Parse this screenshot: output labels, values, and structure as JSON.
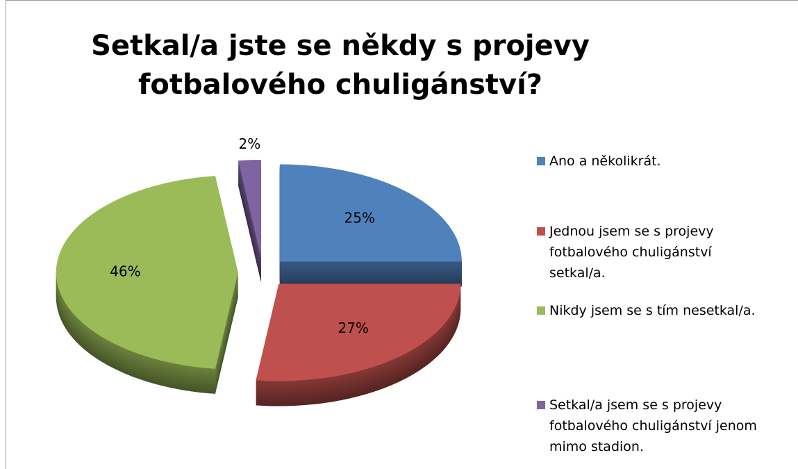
{
  "chart_data": {
    "type": "pie",
    "title": "Setkal/a jste se někdy s projevy fotbalového chuligánství?",
    "categories": [
      "Ano a několikrát.",
      "Jednou jsem se s projevy fotbalového chuligánství setkal/a.",
      "Nikdy jsem se s tím nesetkal/a.",
      "Setkal/a jsem se s projevy fotbalového chuligánství jenom mimo stadion."
    ],
    "values": [
      25,
      27,
      46,
      2
    ],
    "value_labels": [
      "25%",
      "27%",
      "46%",
      "2%"
    ],
    "colors": [
      "#4f81bd",
      "#c0504d",
      "#9bbb59",
      "#8064a2"
    ],
    "legend": "right"
  }
}
